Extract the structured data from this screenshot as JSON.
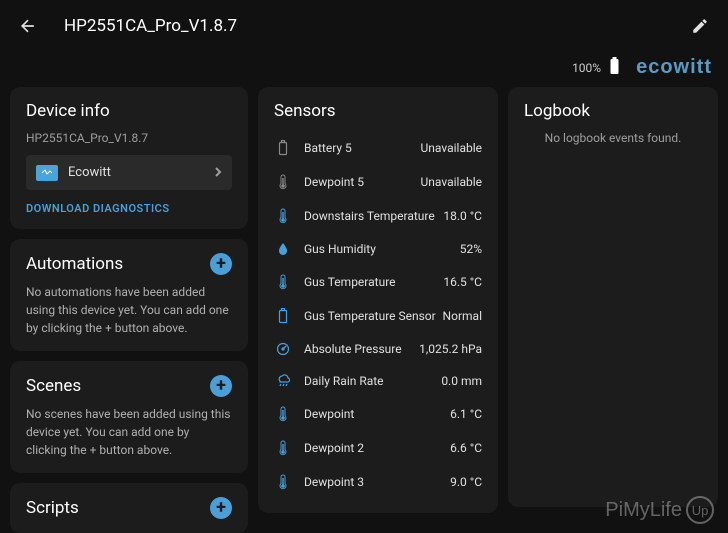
{
  "header": {
    "title": "HP2551CA_Pro_V1.8.7"
  },
  "status": {
    "battery_pct": "100%",
    "brand": "ecowitt"
  },
  "device_info": {
    "title": "Device info",
    "subtitle": "HP2551CA_Pro_V1.8.7",
    "integration_name": "Ecowitt",
    "download_label": "DOWNLOAD DIAGNOSTICS"
  },
  "automations": {
    "title": "Automations",
    "body": "No automations have been added using this device yet. You can add one by clicking the + button above."
  },
  "scenes": {
    "title": "Scenes",
    "body": "No scenes have been added using this device yet. You can add one by clicking the + button above."
  },
  "scripts": {
    "title": "Scripts"
  },
  "sensors": {
    "title": "Sensors",
    "items": [
      {
        "name": "Battery 5",
        "value": "Unavailable",
        "icon": "battery",
        "color": "grey"
      },
      {
        "name": "Dewpoint 5",
        "value": "Unavailable",
        "icon": "therm",
        "color": "grey"
      },
      {
        "name": "Downstairs Temperature",
        "value": "18.0 °C",
        "icon": "therm",
        "color": "blue"
      },
      {
        "name": "Gus Humidity",
        "value": "52%",
        "icon": "drop",
        "color": "blue"
      },
      {
        "name": "Gus Temperature",
        "value": "16.5 °C",
        "icon": "therm",
        "color": "blue"
      },
      {
        "name": "Gus Temperature Sensor",
        "value": "Normal",
        "icon": "battery",
        "color": "blue"
      },
      {
        "name": "Absolute Pressure",
        "value": "1,025.2 hPa",
        "icon": "gauge",
        "color": "blue"
      },
      {
        "name": "Daily Rain Rate",
        "value": "0.0 mm",
        "icon": "rain",
        "color": "blue"
      },
      {
        "name": "Dewpoint",
        "value": "6.1 °C",
        "icon": "therm",
        "color": "blue"
      },
      {
        "name": "Dewpoint 2",
        "value": "6.6 °C",
        "icon": "therm",
        "color": "blue"
      },
      {
        "name": "Dewpoint 3",
        "value": "9.0 °C",
        "icon": "therm",
        "color": "blue"
      }
    ]
  },
  "logbook": {
    "title": "Logbook",
    "empty": "No logbook events found."
  },
  "watermark": {
    "text1": "PiMyLife",
    "text2": "Up"
  },
  "colors": {
    "accent": "#4a9fd8",
    "bg": "#111111",
    "card": "#1c1c1c",
    "text": "#e0e0e0",
    "muted": "#9e9e9e"
  }
}
